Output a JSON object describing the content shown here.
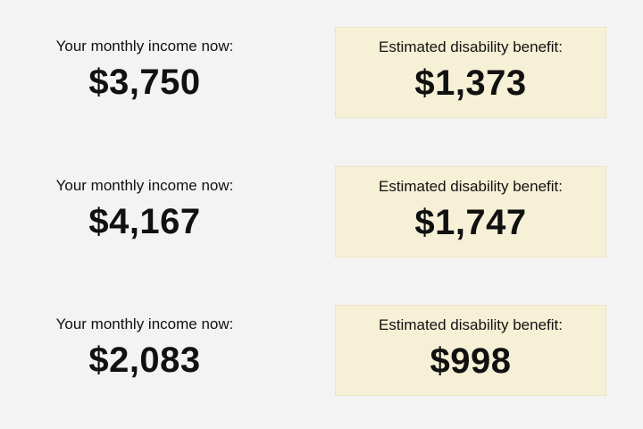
{
  "rows": [
    {
      "income_label": "Your monthly income now:",
      "income_value": "$3,750",
      "benefit_label": "Estimated disability benefit:",
      "benefit_value": "$1,373"
    },
    {
      "income_label": "Your monthly income now:",
      "income_value": "$4,167",
      "benefit_label": "Estimated disability benefit:",
      "benefit_value": "$1,747"
    },
    {
      "income_label": "Your monthly income now:",
      "income_value": "$2,083",
      "benefit_label": "Estimated disability benefit:",
      "benefit_value": "$998"
    }
  ]
}
